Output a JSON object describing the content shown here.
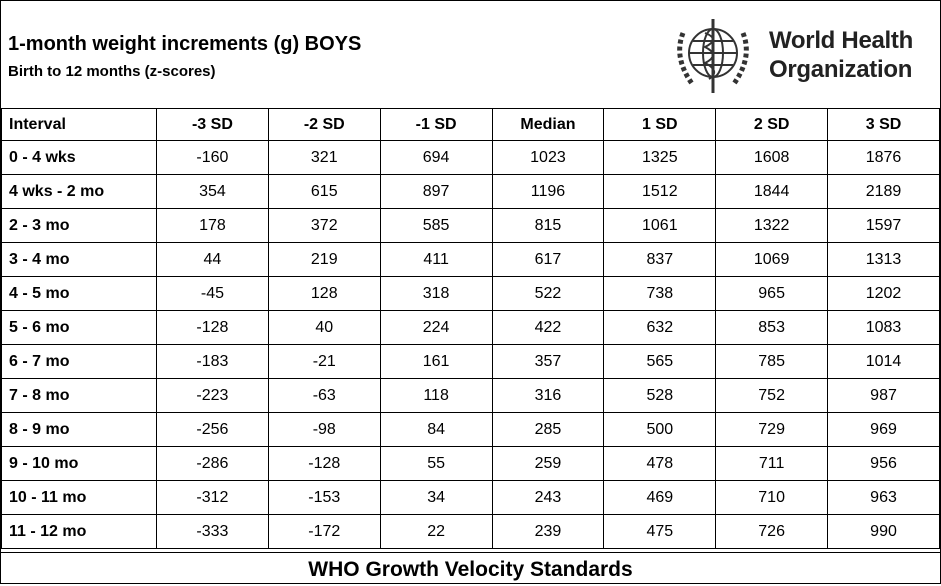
{
  "header": {
    "title": "1-month weight increments (g) BOYS",
    "subtitle": "Birth to 12 months (z-scores)"
  },
  "logo": {
    "line1": "World Health",
    "line2": "Organization"
  },
  "table": {
    "columns": [
      "Interval",
      "-3 SD",
      "-2 SD",
      "-1 SD",
      "Median",
      "1 SD",
      "2 SD",
      "3 SD"
    ],
    "rows": [
      [
        "0 - 4 wks",
        "-160",
        "321",
        "694",
        "1023",
        "1325",
        "1608",
        "1876"
      ],
      [
        "4 wks - 2 mo",
        "354",
        "615",
        "897",
        "1196",
        "1512",
        "1844",
        "2189"
      ],
      [
        "2 - 3 mo",
        "178",
        "372",
        "585",
        "815",
        "1061",
        "1322",
        "1597"
      ],
      [
        "3 - 4 mo",
        "44",
        "219",
        "411",
        "617",
        "837",
        "1069",
        "1313"
      ],
      [
        "4 - 5 mo",
        "-45",
        "128",
        "318",
        "522",
        "738",
        "965",
        "1202"
      ],
      [
        "5 - 6 mo",
        "-128",
        "40",
        "224",
        "422",
        "632",
        "853",
        "1083"
      ],
      [
        "6 - 7 mo",
        "-183",
        "-21",
        "161",
        "357",
        "565",
        "785",
        "1014"
      ],
      [
        "7 - 8 mo",
        "-223",
        "-63",
        "118",
        "316",
        "528",
        "752",
        "987"
      ],
      [
        "8 - 9 mo",
        "-256",
        "-98",
        "84",
        "285",
        "500",
        "729",
        "969"
      ],
      [
        "9 - 10 mo",
        "-286",
        "-128",
        "55",
        "259",
        "478",
        "711",
        "956"
      ],
      [
        "10 - 11 mo",
        "-312",
        "-153",
        "34",
        "243",
        "469",
        "710",
        "963"
      ],
      [
        "11 - 12 mo",
        "-333",
        "-172",
        "22",
        "239",
        "475",
        "726",
        "990"
      ]
    ]
  },
  "footer": "WHO Growth Velocity Standards"
}
